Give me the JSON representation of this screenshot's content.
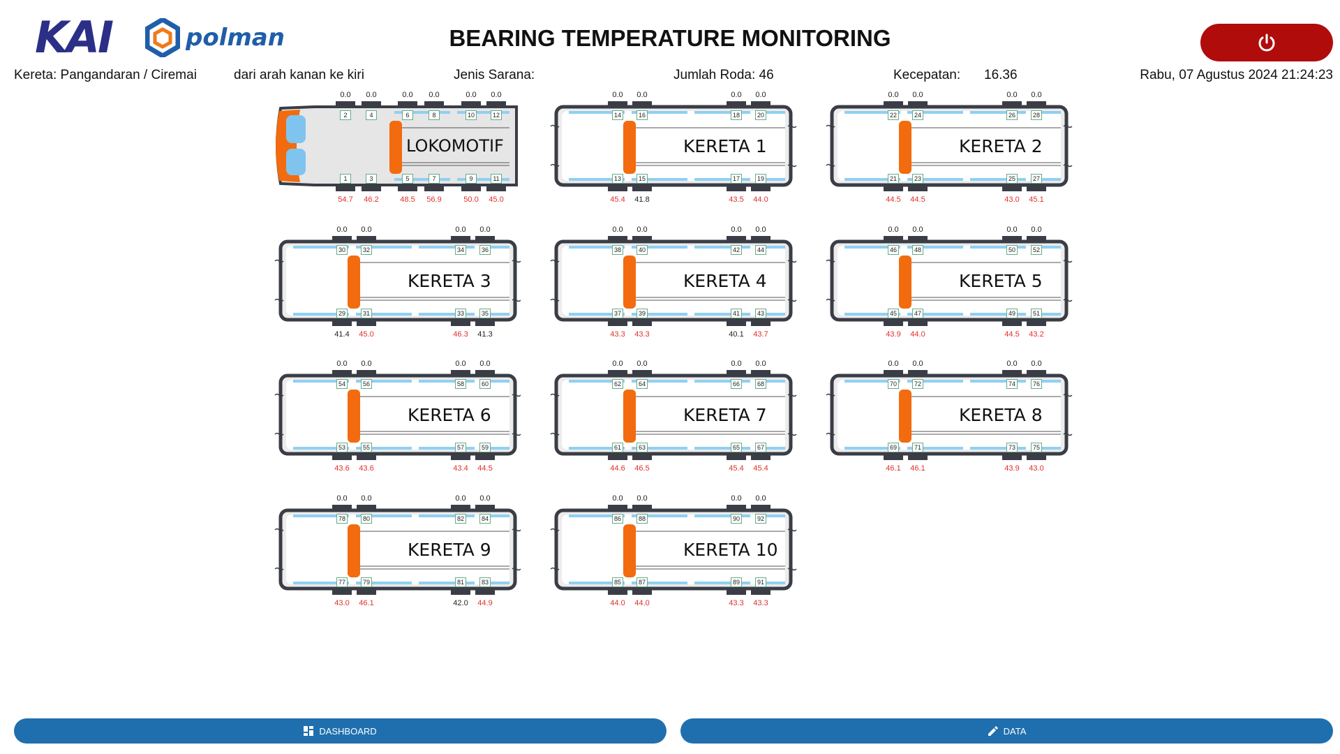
{
  "header": {
    "logo_kai": "KAI",
    "logo_polman": "polman",
    "title": "BEARING TEMPERATURE MONITORING"
  },
  "info": {
    "kereta": "Kereta: Pangandaran / Ciremai",
    "arah": "dari arah kanan ke kiri",
    "jenis_sarana": "Jenis Sarana:",
    "jumlah_roda": "Jumlah Roda: 46",
    "kecepatan_label": "Kecepatan:",
    "kecepatan_value": "16.36",
    "datetime": "Rabu, 07 Agustus 2024 21:24:23"
  },
  "colors": {
    "hot": "#e0302a",
    "normal": "#222222",
    "accent_orange": "#f26b0f",
    "rail_blue": "#8fd0f2",
    "nav": "#1f6fae",
    "power": "#b00c0c"
  },
  "cars": [
    {
      "name": "LOKOMOTIF",
      "top_nums": [
        "2",
        "4",
        "6",
        "8",
        "10",
        "12"
      ],
      "top_temps": [
        "0.0",
        "0.0",
        "0.0",
        "0.0",
        "0.0",
        "0.0"
      ],
      "bot_nums": [
        "1",
        "3",
        "5",
        "7",
        "9",
        "11"
      ],
      "bot_temps": [
        "54.7",
        "46.2",
        "48.5",
        "56.9",
        "50.0",
        "45.0"
      ],
      "bot_hot": [
        true,
        true,
        true,
        true,
        true,
        true
      ]
    },
    {
      "name": "KERETA 1",
      "top_nums": [
        "14",
        "16",
        "18",
        "20"
      ],
      "top_temps": [
        "0.0",
        "0.0",
        "0.0",
        "0.0"
      ],
      "bot_nums": [
        "13",
        "15",
        "17",
        "19"
      ],
      "bot_temps": [
        "45.4",
        "41.8",
        "43.5",
        "44.0"
      ],
      "bot_hot": [
        true,
        false,
        true,
        true
      ]
    },
    {
      "name": "KERETA 2",
      "top_nums": [
        "22",
        "24",
        "26",
        "28"
      ],
      "top_temps": [
        "0.0",
        "0.0",
        "0.0",
        "0.0"
      ],
      "bot_nums": [
        "21",
        "23",
        "25",
        "27"
      ],
      "bot_temps": [
        "44.5",
        "44.5",
        "43.0",
        "45.1"
      ],
      "bot_hot": [
        true,
        true,
        true,
        true
      ]
    },
    {
      "name": "KERETA 3",
      "top_nums": [
        "30",
        "32",
        "34",
        "36"
      ],
      "top_temps": [
        "0.0",
        "0.0",
        "0.0",
        "0.0"
      ],
      "bot_nums": [
        "29",
        "31",
        "33",
        "35"
      ],
      "bot_temps": [
        "41.4",
        "45.0",
        "46.3",
        "41.3"
      ],
      "bot_hot": [
        false,
        true,
        true,
        false
      ]
    },
    {
      "name": "KERETA 4",
      "top_nums": [
        "38",
        "40",
        "42",
        "44"
      ],
      "top_temps": [
        "0.0",
        "0.0",
        "0.0",
        "0.0"
      ],
      "bot_nums": [
        "37",
        "39",
        "41",
        "43"
      ],
      "bot_temps": [
        "43.3",
        "43.3",
        "40.1",
        "43.7"
      ],
      "bot_hot": [
        true,
        true,
        false,
        true
      ]
    },
    {
      "name": "KERETA 5",
      "top_nums": [
        "46",
        "48",
        "50",
        "52"
      ],
      "top_temps": [
        "0.0",
        "0.0",
        "0.0",
        "0.0"
      ],
      "bot_nums": [
        "45",
        "47",
        "49",
        "51"
      ],
      "bot_temps": [
        "43.9",
        "44.0",
        "44.5",
        "43.2"
      ],
      "bot_hot": [
        true,
        true,
        true,
        true
      ]
    },
    {
      "name": "KERETA 6",
      "top_nums": [
        "54",
        "56",
        "58",
        "60"
      ],
      "top_temps": [
        "0.0",
        "0.0",
        "0.0",
        "0.0"
      ],
      "bot_nums": [
        "53",
        "55",
        "57",
        "59"
      ],
      "bot_temps": [
        "43.6",
        "43.6",
        "43.4",
        "44.5"
      ],
      "bot_hot": [
        true,
        true,
        true,
        true
      ]
    },
    {
      "name": "KERETA 7",
      "top_nums": [
        "62",
        "64",
        "66",
        "68"
      ],
      "top_temps": [
        "0.0",
        "0.0",
        "0.0",
        "0.0"
      ],
      "bot_nums": [
        "61",
        "63",
        "65",
        "67"
      ],
      "bot_temps": [
        "44.6",
        "46.5",
        "45.4",
        "45.4"
      ],
      "bot_hot": [
        true,
        true,
        true,
        true
      ]
    },
    {
      "name": "KERETA 8",
      "top_nums": [
        "70",
        "72",
        "74",
        "76"
      ],
      "top_temps": [
        "0.0",
        "0.0",
        "0.0",
        "0.0"
      ],
      "bot_nums": [
        "69",
        "71",
        "73",
        "75"
      ],
      "bot_temps": [
        "46.1",
        "46.1",
        "43.9",
        "43.0"
      ],
      "bot_hot": [
        true,
        true,
        true,
        true
      ]
    },
    {
      "name": "KERETA 9",
      "top_nums": [
        "78",
        "80",
        "82",
        "84"
      ],
      "top_temps": [
        "0.0",
        "0.0",
        "0.0",
        "0.0"
      ],
      "bot_nums": [
        "77",
        "79",
        "81",
        "83"
      ],
      "bot_temps": [
        "43.0",
        "46.1",
        "42.0",
        "44.9"
      ],
      "bot_hot": [
        true,
        true,
        false,
        true
      ]
    },
    {
      "name": "KERETA 10",
      "top_nums": [
        "86",
        "88",
        "90",
        "92"
      ],
      "top_temps": [
        "0.0",
        "0.0",
        "0.0",
        "0.0"
      ],
      "bot_nums": [
        "85",
        "87",
        "89",
        "91"
      ],
      "bot_temps": [
        "44.0",
        "44.0",
        "43.3",
        "43.3"
      ],
      "bot_hot": [
        true,
        true,
        true,
        true
      ]
    }
  ],
  "nav": {
    "dashboard_label": "DASHBOARD",
    "data_label": "DATA",
    "dashboard_icon": "dashboard-icon",
    "data_icon": "pencil-icon"
  }
}
